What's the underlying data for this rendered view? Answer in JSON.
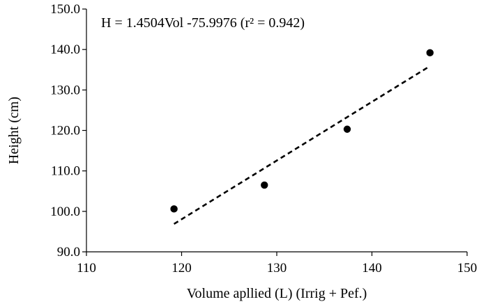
{
  "chart_data": {
    "type": "scatter",
    "xlabel": "Volume apllied (L) (Irrig + Pef.)",
    "ylabel": "Height (cm)",
    "xlim": [
      110,
      150
    ],
    "ylim": [
      90,
      150
    ],
    "xticks": [
      110,
      120,
      130,
      140,
      150
    ],
    "xtick_labels": [
      "110",
      "120",
      "130",
      "140",
      "150"
    ],
    "yticks": [
      90,
      100,
      110,
      120,
      130,
      140,
      150
    ],
    "ytick_labels": [
      "90.0",
      "100.0",
      "110.0",
      "120.0",
      "130.0",
      "140.0",
      "150.0"
    ],
    "grid": false,
    "annotation": "H = 1.4504Vol -75.9976  (r² = 0.942)",
    "series": [
      {
        "points": [
          {
            "x": 119.2,
            "y": 100.6
          },
          {
            "x": 128.7,
            "y": 106.5
          },
          {
            "x": 137.4,
            "y": 120.3
          },
          {
            "x": 146.1,
            "y": 139.2
          }
        ],
        "marker_color": "#000000"
      }
    ],
    "trendline": {
      "slope": 1.4504,
      "intercept": -75.9976,
      "x_range": [
        119.2,
        146.1
      ],
      "style": "dashed",
      "color": "#000000"
    }
  }
}
